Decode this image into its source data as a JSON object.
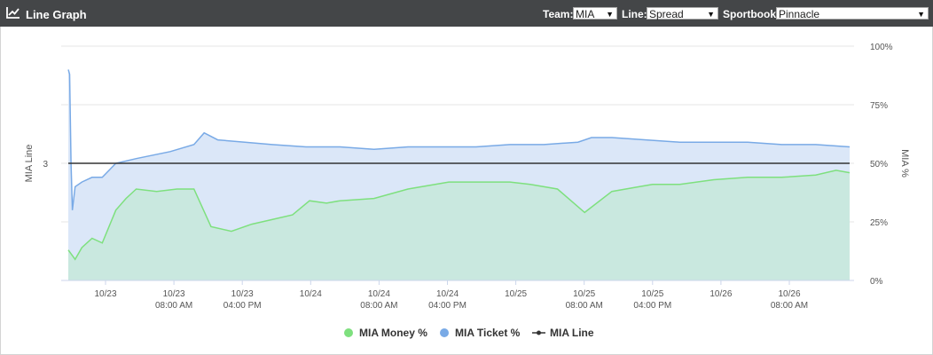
{
  "header": {
    "title": "Line Graph",
    "team_label": "Team:",
    "team_value": "MIA",
    "line_label": "Line:",
    "line_value": "Spread",
    "sportsbook_label": "Sportbook:",
    "sportsbook_value": "Pinnacle"
  },
  "colors": {
    "header_bg": "#444648",
    "money": "#7ee07e",
    "money_fill": "#c9e8df",
    "ticket": "#79aae6",
    "ticket_fill": "#dbe7f8",
    "line": "#333333"
  },
  "chart_data": {
    "type": "area",
    "x_tick_labels": [
      [
        "10/23",
        ""
      ],
      [
        "10/23",
        "08:00 AM"
      ],
      [
        "10/23",
        "04:00 PM"
      ],
      [
        "10/24",
        ""
      ],
      [
        "10/24",
        "08:00 AM"
      ],
      [
        "10/24",
        "04:00 PM"
      ],
      [
        "10/25",
        ""
      ],
      [
        "10/25",
        "08:00 AM"
      ],
      [
        "10/25",
        "04:00 PM"
      ],
      [
        "10/26",
        ""
      ],
      [
        "10/26",
        "08:00 AM"
      ]
    ],
    "ylabel_left": "MIA Line",
    "ylabel_right": "MIA %",
    "y_right_ticks": [
      "0%",
      "25%",
      "50%",
      "75%",
      "100%"
    ],
    "y_left_ticks": [
      "3"
    ],
    "ylim_right": [
      0,
      100
    ],
    "legend": [
      "MIA Money %",
      "MIA Ticket %",
      "MIA Line"
    ],
    "legend_position": "bottom",
    "series": [
      {
        "name": "MIA Money %",
        "x": [
          0.0,
          0.1,
          0.2,
          0.35,
          0.5,
          0.7,
          0.85,
          1.0,
          1.3,
          1.6,
          1.85,
          2.1,
          2.4,
          2.5,
          2.7,
          3.0,
          3.3,
          3.55,
          3.8,
          4.0,
          4.5,
          5.0,
          5.6,
          6.2,
          6.5,
          6.8,
          7.2,
          7.4,
          7.6,
          8.0,
          8.4,
          8.6,
          9.0,
          9.5,
          10.0,
          10.5,
          11.0,
          11.3,
          11.5
        ],
        "values": [
          13,
          9,
          14,
          18,
          16,
          30,
          35,
          39,
          38,
          39,
          39,
          23,
          21,
          22,
          24,
          26,
          28,
          34,
          33,
          34,
          35,
          39,
          42,
          42,
          42,
          41,
          39,
          34,
          29,
          38,
          40,
          41,
          41,
          43,
          44,
          44,
          45,
          47,
          46
        ]
      },
      {
        "name": "MIA Ticket %",
        "x": [
          0.0,
          0.02,
          0.04,
          0.06,
          0.1,
          0.2,
          0.35,
          0.5,
          0.6,
          0.7,
          1.0,
          1.5,
          1.85,
          2.0,
          2.2,
          2.6,
          3.0,
          3.5,
          3.7,
          4.0,
          4.5,
          5.0,
          5.5,
          6.0,
          6.5,
          7.0,
          7.5,
          7.7,
          8.0,
          8.5,
          9.0,
          9.5,
          10.0,
          10.5,
          11.0,
          11.5
        ],
        "values": [
          90,
          88,
          50,
          30,
          40,
          42,
          44,
          44,
          47,
          50,
          52,
          55,
          58,
          63,
          60,
          59,
          58,
          57,
          57,
          57,
          56,
          57,
          57,
          57,
          58,
          58,
          59,
          61,
          61,
          60,
          59,
          59,
          59,
          58,
          58,
          57
        ]
      },
      {
        "name": "MIA Line",
        "x": [
          0.0,
          11.5
        ],
        "values": [
          50,
          50
        ],
        "label_value": "3"
      }
    ]
  }
}
